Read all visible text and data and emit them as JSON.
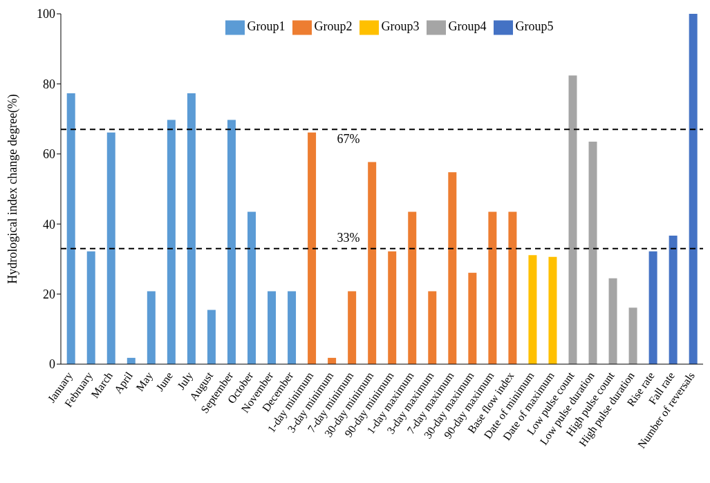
{
  "chart_data": {
    "type": "bar",
    "ylabel": "Hydrological index change degree(%)",
    "categories": [
      "January",
      "February",
      "March",
      "April",
      "May",
      "June",
      "July",
      "August",
      "September",
      "October",
      "November",
      "December",
      "1-day minimum",
      "3-day minimum",
      "7-day minimum",
      "30-day minimum",
      "90-day minimum",
      "1-day maximum",
      "3-day maximum",
      "7-day maximum",
      "30-day maximum",
      "90-day maximum",
      "Base flow index",
      "Date of minimum",
      "Date of maximum",
      "Low pulse count",
      "Low pulse duration",
      "High pulse count",
      "High pulse duration",
      "Rise rate",
      "Fall rate",
      "Number of reversals"
    ],
    "series": [
      {
        "name": "Group1",
        "color": "#5b9bd5",
        "values": [
          77.3,
          32.2,
          66.1,
          1.8,
          20.8,
          69.7,
          77.3,
          15.5,
          69.7,
          43.5,
          20.8,
          20.8,
          null,
          null,
          null,
          null,
          null,
          null,
          null,
          null,
          null,
          null,
          null,
          null,
          null,
          null,
          null,
          null,
          null,
          null,
          null,
          null
        ]
      },
      {
        "name": "Group2",
        "color": "#ed7d31",
        "values": [
          null,
          null,
          null,
          null,
          null,
          null,
          null,
          null,
          null,
          null,
          null,
          null,
          66.1,
          1.8,
          20.8,
          57.7,
          32.2,
          43.5,
          20.8,
          54.8,
          26.1,
          43.5,
          43.5,
          null,
          null,
          null,
          null,
          null,
          null,
          null,
          null,
          null
        ]
      },
      {
        "name": "Group3",
        "color": "#ffc000",
        "values": [
          null,
          null,
          null,
          null,
          null,
          null,
          null,
          null,
          null,
          null,
          null,
          null,
          null,
          null,
          null,
          null,
          null,
          null,
          null,
          null,
          null,
          null,
          null,
          31.1,
          30.6,
          null,
          null,
          null,
          null,
          null,
          null,
          null
        ]
      },
      {
        "name": "Group4",
        "color": "#a5a5a5",
        "values": [
          null,
          null,
          null,
          null,
          null,
          null,
          null,
          null,
          null,
          null,
          null,
          null,
          null,
          null,
          null,
          null,
          null,
          null,
          null,
          null,
          null,
          null,
          null,
          null,
          null,
          82.4,
          63.5,
          24.5,
          16.1,
          null,
          null,
          null
        ]
      },
      {
        "name": "Group5",
        "color": "#4472c4",
        "values": [
          null,
          null,
          null,
          null,
          null,
          null,
          null,
          null,
          null,
          null,
          null,
          null,
          null,
          null,
          null,
          null,
          null,
          null,
          null,
          null,
          null,
          null,
          null,
          null,
          null,
          null,
          null,
          null,
          null,
          32.2,
          36.7,
          100
        ]
      }
    ],
    "ylim": [
      0,
      100
    ],
    "yticks": [
      0,
      20,
      40,
      60,
      80,
      100
    ],
    "ref_lines": [
      {
        "axis": "y",
        "value": 67,
        "label": "67%",
        "color": "#000000",
        "line_style": "dashed"
      },
      {
        "axis": "y",
        "value": 33,
        "label": "33%",
        "color": "#000000",
        "line_style": "dashed"
      }
    ],
    "legend": "top",
    "grid": false
  }
}
